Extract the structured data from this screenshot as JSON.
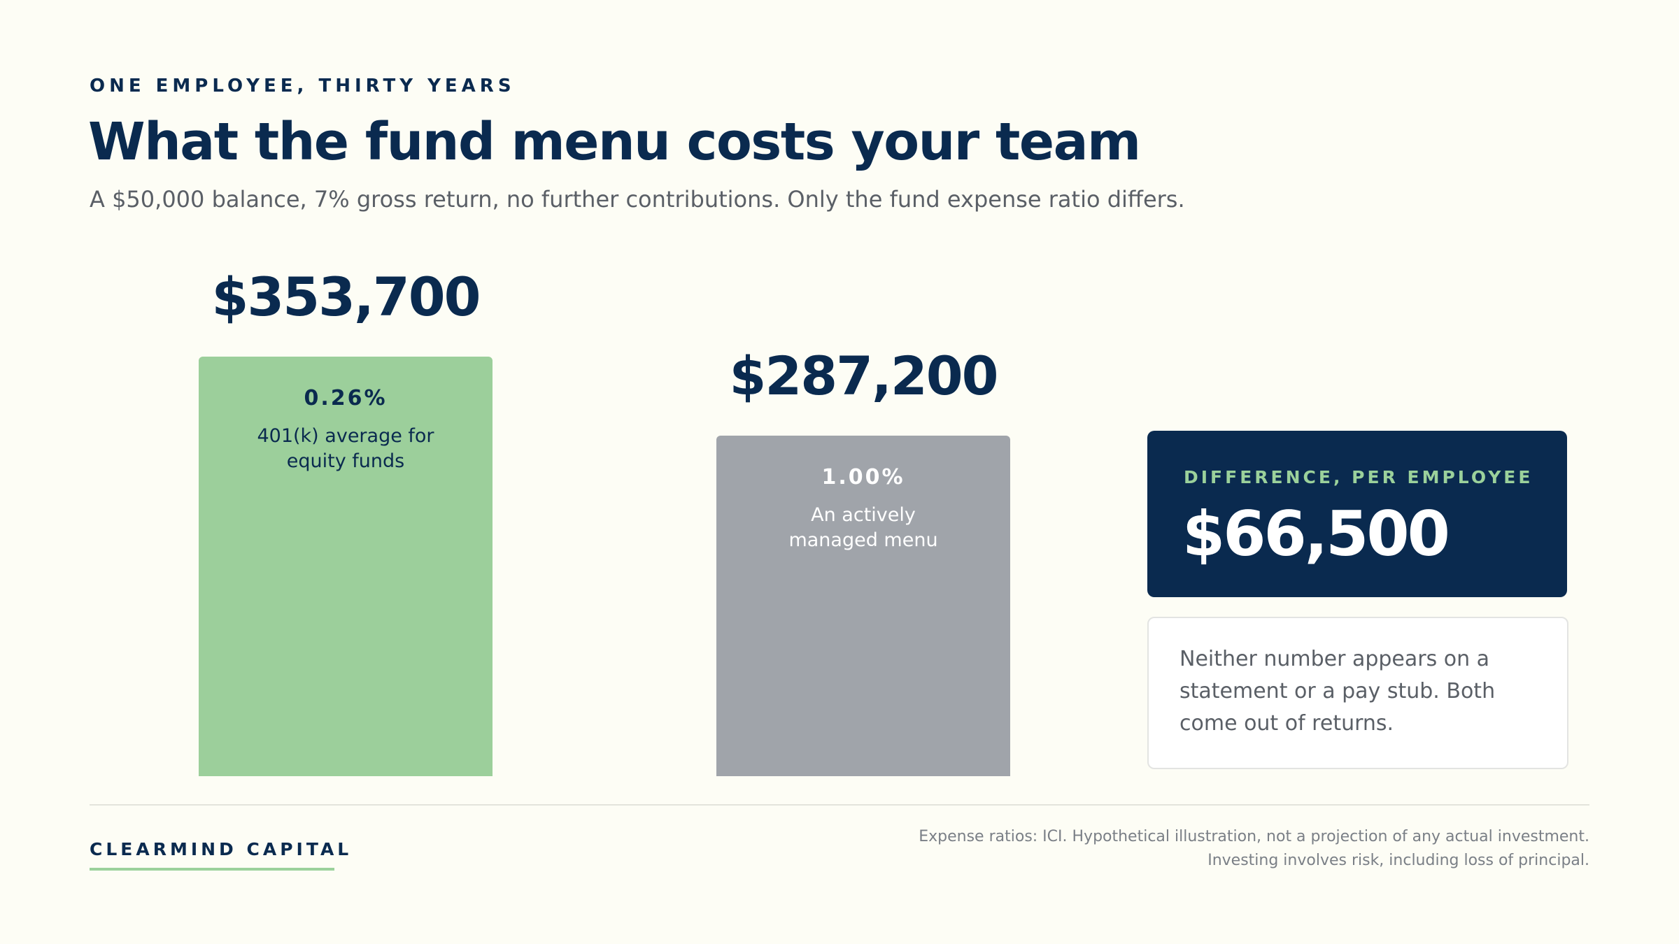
{
  "header": {
    "eyebrow": "ONE EMPLOYEE, THIRTY YEARS",
    "title": "What the fund menu costs your team",
    "subtitle": "A $50,000 balance, 7% gross return, no further contributions. Only the fund expense ratio differs."
  },
  "chart_data": {
    "type": "bar",
    "categories": [
      "401(k) average for equity funds",
      "An actively managed menu"
    ],
    "expense_ratios": [
      "0.26%",
      "1.00%"
    ],
    "values": [
      353700,
      287200
    ],
    "value_labels": [
      "$353,700",
      "$287,200"
    ],
    "colors": [
      "#9ccf9b",
      "#a0a4aa"
    ],
    "ylim": [
      0,
      353700
    ],
    "grid": false,
    "legend": "none"
  },
  "difference": {
    "label": "DIFFERENCE, PER EMPLOYEE",
    "value": "$66,500"
  },
  "note": {
    "text": "Neither number appears on a statement or a pay stub. Both come out of returns."
  },
  "footer": {
    "brand": "CLEARMIND CAPITAL",
    "footnote_line1": "Expense ratios: ICI. Hypothetical illustration, not a projection of any actual investment.",
    "footnote_line2": "Investing involves risk, including loss of principal."
  },
  "colors": {
    "navy": "#0a2a4f",
    "green": "#9ccf9b",
    "gray": "#a0a4aa",
    "background": "#fdfdf5"
  }
}
